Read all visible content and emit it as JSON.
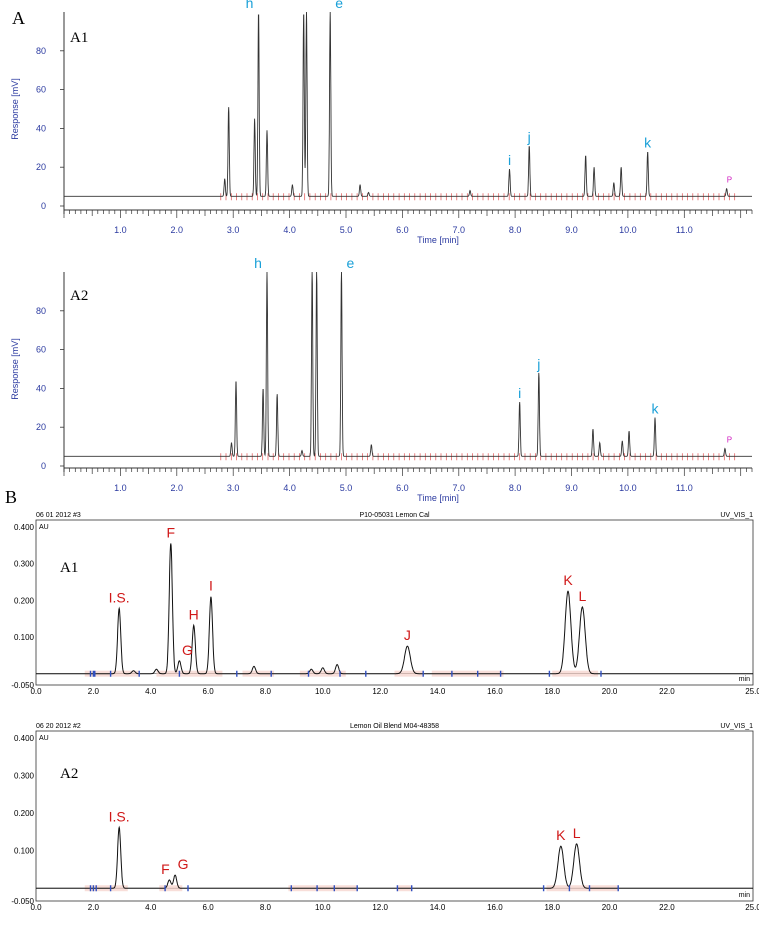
{
  "figure": {
    "panel_a": "A",
    "panel_b": "B"
  },
  "chart_data": [
    {
      "type": "line",
      "id": "gc_a1",
      "sublabel": "A1",
      "xlabel": "Time [min]",
      "ylabel": "Response [mV]",
      "xlim": [
        0,
        12.2
      ],
      "ylim": [
        0,
        100
      ],
      "xticks": [
        "1.0",
        "2.0",
        "3.0",
        "4.0",
        "5.0",
        "6.0",
        "7.0",
        "8.0",
        "9.0",
        "10.0",
        "11.0"
      ],
      "yticks": [
        "0",
        "20",
        "40",
        "60",
        "80"
      ],
      "baseline": 5,
      "peaks": [
        {
          "x": 2.85,
          "y": 14
        },
        {
          "x": 2.92,
          "y": 51
        },
        {
          "x": 3.38,
          "y": 45
        },
        {
          "x": 3.45,
          "y": 100,
          "label": "h"
        },
        {
          "x": 3.6,
          "y": 39
        },
        {
          "x": 4.05,
          "y": 11
        },
        {
          "x": 4.25,
          "y": 100
        },
        {
          "x": 4.3,
          "y": 100
        },
        {
          "x": 4.72,
          "y": 100,
          "label": "e"
        },
        {
          "x": 5.25,
          "y": 11
        },
        {
          "x": 5.4,
          "y": 7
        },
        {
          "x": 7.2,
          "y": 8
        },
        {
          "x": 7.9,
          "y": 19,
          "label": "i"
        },
        {
          "x": 8.25,
          "y": 31,
          "label": "j"
        },
        {
          "x": 9.25,
          "y": 26
        },
        {
          "x": 9.4,
          "y": 20
        },
        {
          "x": 9.75,
          "y": 12
        },
        {
          "x": 9.88,
          "y": 20
        },
        {
          "x": 10.35,
          "y": 28,
          "label": "k"
        },
        {
          "x": 11.75,
          "y": 9
        }
      ],
      "end_mark": "P"
    },
    {
      "type": "line",
      "id": "gc_a2",
      "sublabel": "A2",
      "xlabel": "Time [min]",
      "ylabel": "Response [mV]",
      "xlim": [
        0,
        12.2
      ],
      "ylim": [
        0,
        100
      ],
      "xticks": [
        "1.0",
        "2.0",
        "3.0",
        "4.0",
        "5.0",
        "6.0",
        "7.0",
        "8.0",
        "9.0",
        "10.0",
        "11.0"
      ],
      "yticks": [
        "0",
        "20",
        "40",
        "60",
        "80"
      ],
      "baseline": 5,
      "peaks": [
        {
          "x": 2.97,
          "y": 12
        },
        {
          "x": 3.05,
          "y": 44
        },
        {
          "x": 3.53,
          "y": 40
        },
        {
          "x": 3.6,
          "y": 100,
          "label": "h"
        },
        {
          "x": 3.78,
          "y": 37
        },
        {
          "x": 4.22,
          "y": 8
        },
        {
          "x": 4.4,
          "y": 100
        },
        {
          "x": 4.48,
          "y": 100
        },
        {
          "x": 4.92,
          "y": 100,
          "label": "e"
        },
        {
          "x": 5.45,
          "y": 11
        },
        {
          "x": 8.08,
          "y": 33,
          "label": "i"
        },
        {
          "x": 8.42,
          "y": 48,
          "label": "j"
        },
        {
          "x": 9.38,
          "y": 19
        },
        {
          "x": 9.5,
          "y": 12
        },
        {
          "x": 9.9,
          "y": 13
        },
        {
          "x": 10.02,
          "y": 18
        },
        {
          "x": 10.48,
          "y": 25,
          "label": "k"
        },
        {
          "x": 11.72,
          "y": 9
        }
      ],
      "end_mark": "P"
    },
    {
      "type": "line",
      "id": "hplc_a1",
      "sublabel": "A1",
      "header_left": "06 01 2012 #3",
      "header_center": "P10-05031 Lemon Cal",
      "header_right": "UV_VIS_1",
      "yunit": "AU",
      "xunit": "min",
      "xlim": [
        0,
        25
      ],
      "ylim": [
        -0.05,
        0.4
      ],
      "xticks": [
        "0.0",
        "2.0",
        "4.0",
        "6.0",
        "8.0",
        "10.0",
        "12.0",
        "14.0",
        "16.0",
        "18.0",
        "20.0",
        "22.0",
        "25.0"
      ],
      "yticks": [
        "-0.050",
        "0.100",
        "0.200",
        "0.300",
        "0.400"
      ],
      "baseline": 0,
      "peaks": [
        {
          "x": 2.9,
          "y": 0.178,
          "label": "I.S."
        },
        {
          "x": 3.4,
          "y": 0.008
        },
        {
          "x": 4.2,
          "y": 0.012
        },
        {
          "x": 4.7,
          "y": 0.355,
          "label": "F"
        },
        {
          "x": 5.0,
          "y": 0.035,
          "label": "G"
        },
        {
          "x": 5.5,
          "y": 0.132,
          "label": "H"
        },
        {
          "x": 6.1,
          "y": 0.21,
          "label": "I"
        },
        {
          "x": 7.6,
          "y": 0.02
        },
        {
          "x": 9.6,
          "y": 0.012
        },
        {
          "x": 10.0,
          "y": 0.016
        },
        {
          "x": 10.5,
          "y": 0.025
        },
        {
          "x": 12.95,
          "y": 0.075,
          "label": "J"
        },
        {
          "x": 18.55,
          "y": 0.225,
          "label": "K"
        },
        {
          "x": 19.05,
          "y": 0.182,
          "label": "L"
        }
      ]
    },
    {
      "type": "line",
      "id": "hplc_a2",
      "sublabel": "A2",
      "header_left": "06 20 2012 #2",
      "header_center": "Lemon Oil Blend M04-48358",
      "header_right": "UV_VIS_1",
      "yunit": "AU",
      "xunit": "min",
      "xlim": [
        0,
        25
      ],
      "ylim": [
        -0.05,
        0.4
      ],
      "xticks": [
        "0.0",
        "2.0",
        "4.0",
        "6.0",
        "8.0",
        "10.0",
        "12.0",
        "14.0",
        "16.0",
        "18.0",
        "20.0",
        "22.0",
        "25.0"
      ],
      "yticks": [
        "-0.050",
        "0.100",
        "0.200",
        "0.300",
        "0.400"
      ],
      "baseline": 0,
      "peaks": [
        {
          "x": 2.9,
          "y": 0.162,
          "label": "I.S."
        },
        {
          "x": 4.65,
          "y": 0.022,
          "label": "F"
        },
        {
          "x": 4.85,
          "y": 0.035,
          "label": "G"
        },
        {
          "x": 18.3,
          "y": 0.112,
          "label": "K"
        },
        {
          "x": 18.85,
          "y": 0.118,
          "label": "L"
        }
      ]
    }
  ]
}
